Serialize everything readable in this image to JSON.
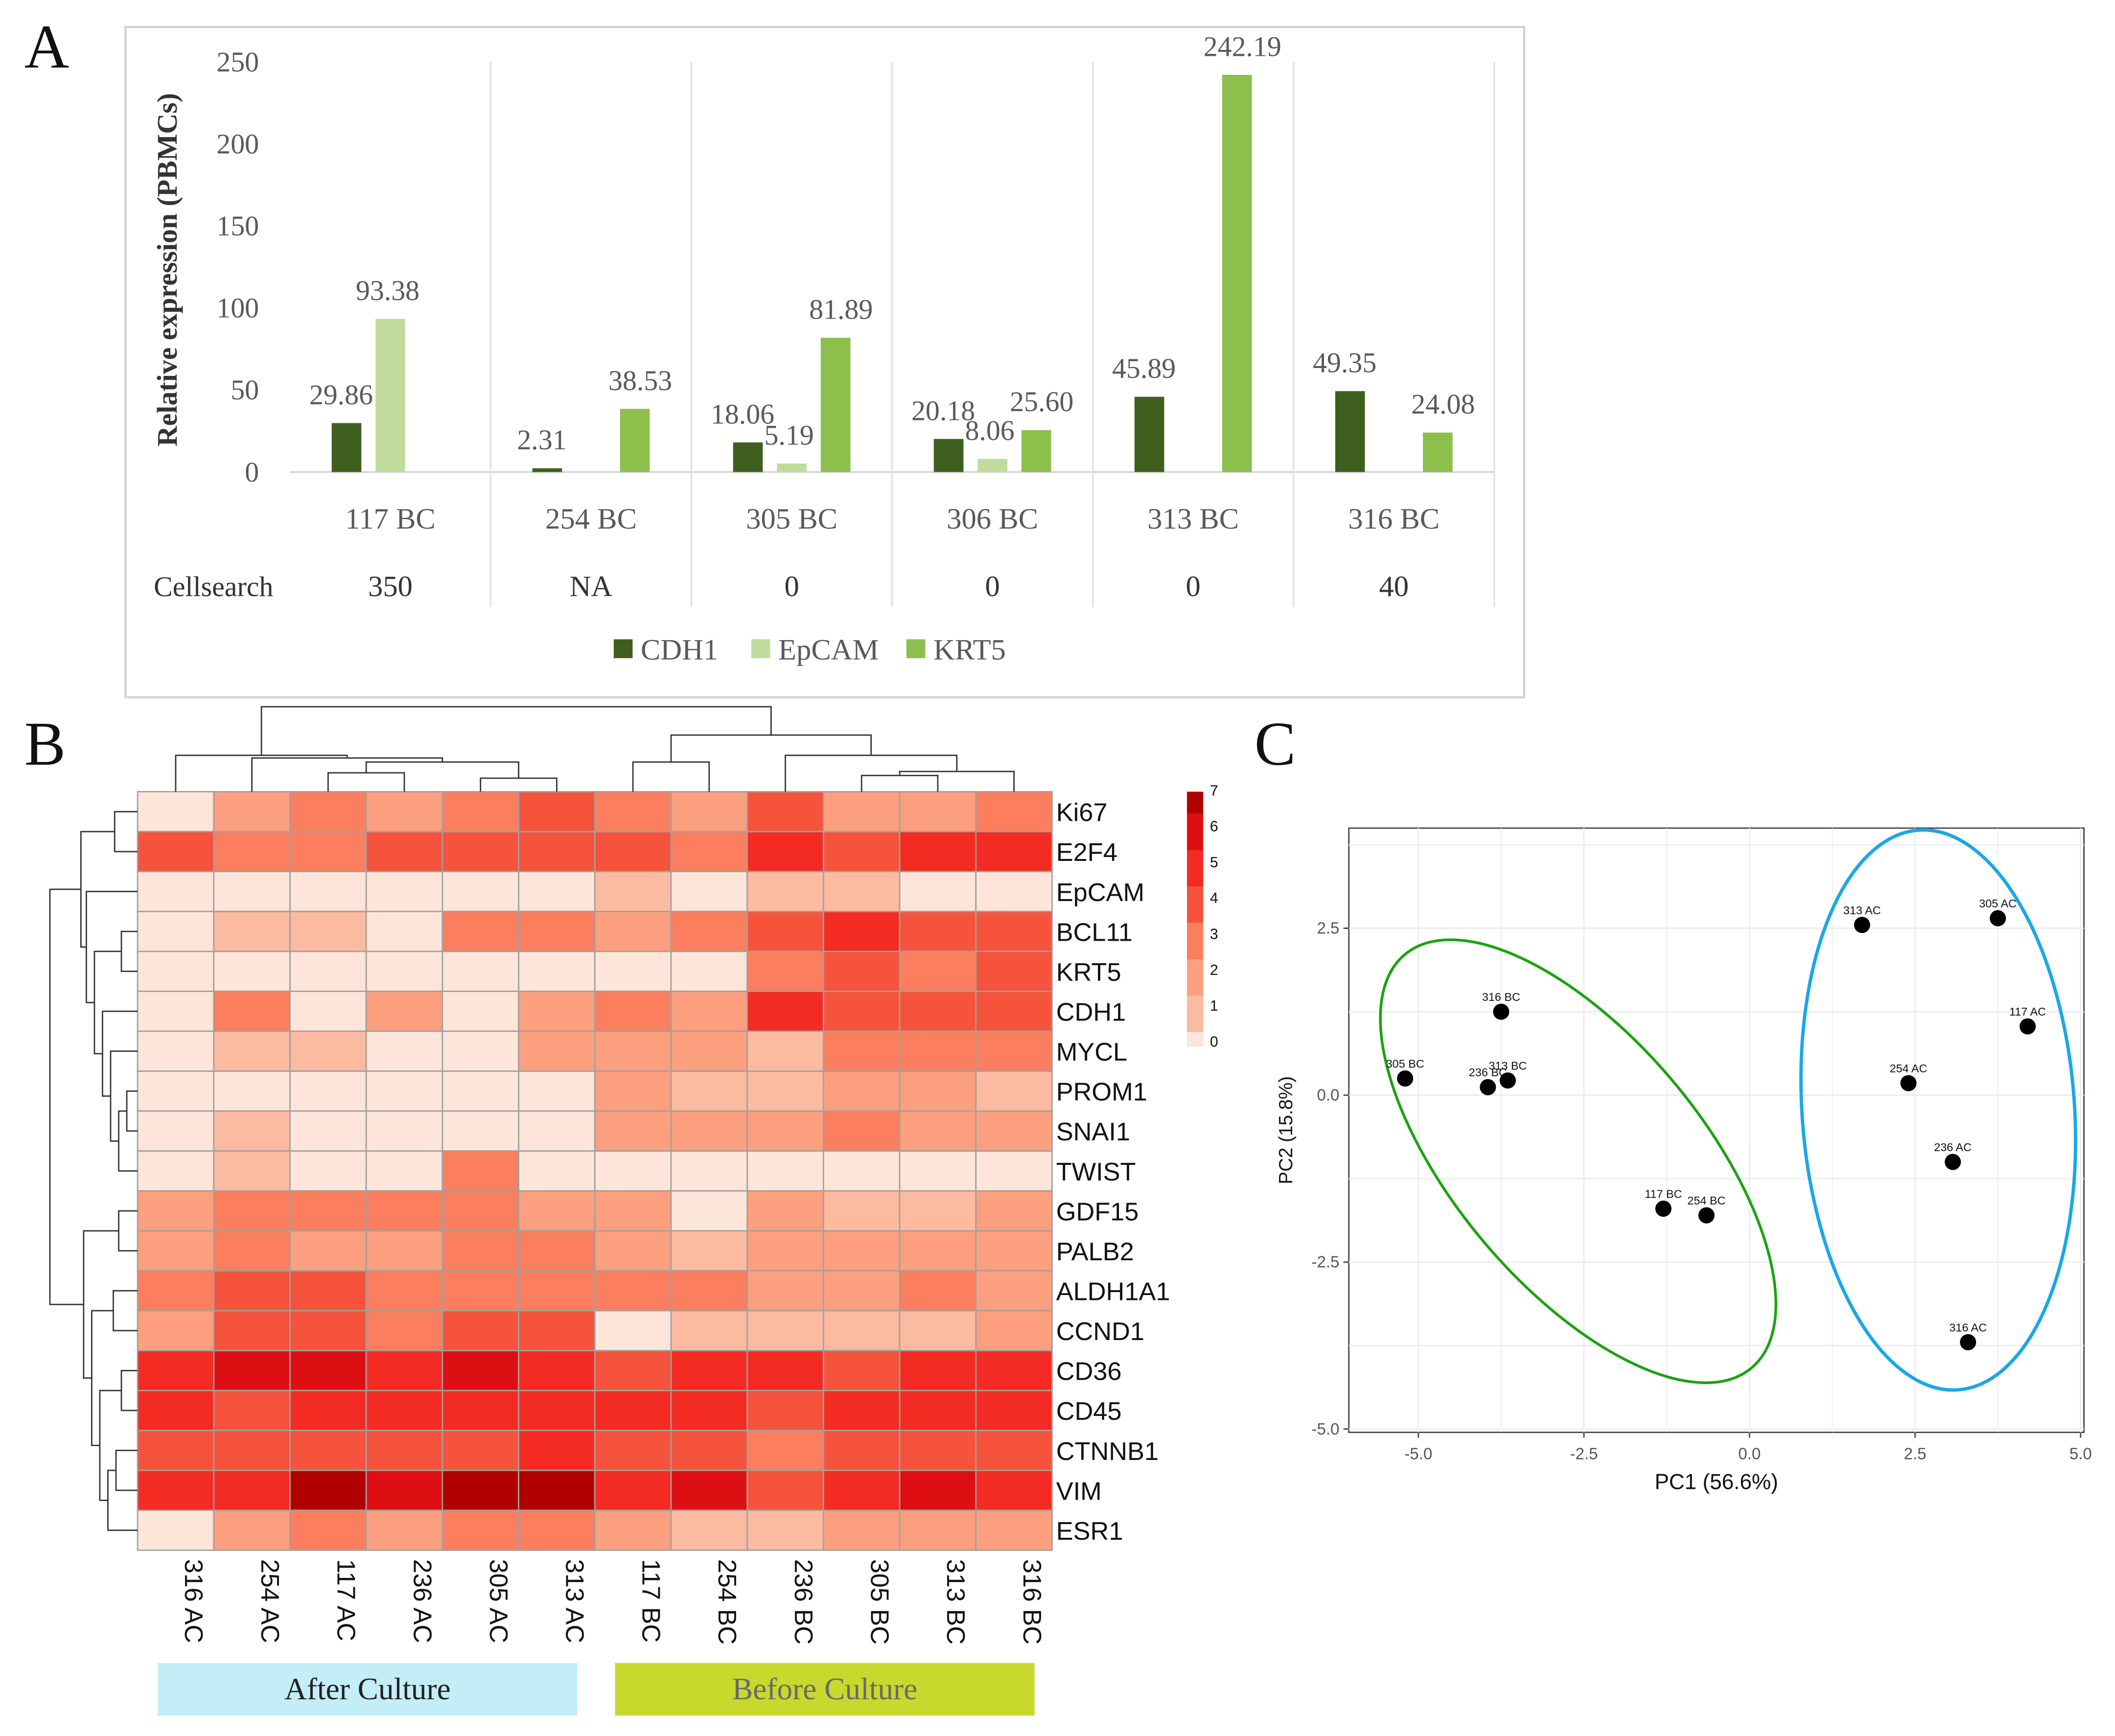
{
  "panels": {
    "a": "A",
    "b": "B",
    "c": "C"
  },
  "chart_data": [
    {
      "type": "bar",
      "title": "",
      "ylabel": "Relative expression (PBMCs)",
      "ylim": [
        0,
        250
      ],
      "yticks": [
        0,
        50,
        100,
        150,
        200,
        250
      ],
      "categories": [
        "117 BC",
        "254 BC",
        "305 BC",
        "306 BC",
        "313 BC",
        "316 BC"
      ],
      "series": [
        {
          "name": "CDH1",
          "color": "#3f5f1f",
          "values": [
            29.86,
            2.31,
            18.06,
            20.18,
            45.89,
            49.35
          ],
          "labels": [
            "29.86",
            "2.31",
            "18.06",
            "20.18",
            "45.89",
            "49.35"
          ]
        },
        {
          "name": "EpCAM",
          "color": "#c0dc9c",
          "values": [
            93.38,
            null,
            5.19,
            8.06,
            null,
            null
          ],
          "labels": [
            "93.38",
            null,
            "5.19",
            "8.06",
            null,
            null
          ]
        },
        {
          "name": "KRT5",
          "color": "#8cbf4c",
          "values": [
            null,
            38.53,
            81.89,
            25.6,
            242.19,
            24.08
          ],
          "labels": [
            null,
            "38.53",
            "81.89",
            "25.60",
            "242.19",
            "24.08"
          ]
        }
      ],
      "table_row": {
        "label": "Cellsearch",
        "values": [
          "350",
          "NA",
          "0",
          "0",
          "0",
          "40"
        ]
      },
      "legend": "bottom"
    },
    {
      "type": "heatmap",
      "columns": [
        "316 AC",
        "254 AC",
        "117 AC",
        "236 AC",
        "305 AC",
        "313 AC",
        "117 BC",
        "254 BC",
        "236 BC",
        "305 BC",
        "313 BC",
        "316 BC"
      ],
      "rows": [
        "Ki67",
        "E2F4",
        "EpCAM",
        "BCL11",
        "KRT5",
        "CDH1",
        "MYCL",
        "PROM1",
        "SNAI1",
        "TWIST",
        "GDF15",
        "PALB2",
        "ALDH1A1",
        "CCND1",
        "CD36",
        "CD45",
        "CTNNB1",
        "VIM",
        "ESR1"
      ],
      "values": [
        [
          0,
          2,
          3,
          2,
          3,
          4,
          3,
          2,
          4,
          2,
          2,
          3
        ],
        [
          4,
          3,
          3,
          4,
          4,
          4,
          4,
          3,
          5,
          4,
          5,
          5
        ],
        [
          0,
          0,
          0,
          0,
          0,
          0,
          1,
          0,
          1,
          1,
          0,
          0
        ],
        [
          0,
          1,
          1,
          0,
          3,
          3,
          2,
          3,
          4,
          5,
          4,
          4
        ],
        [
          0,
          0,
          0,
          0,
          0,
          0,
          0,
          0,
          3,
          4,
          3,
          4
        ],
        [
          0,
          3,
          0,
          2,
          0,
          2,
          3,
          2,
          5,
          4,
          4,
          4
        ],
        [
          0,
          1,
          1,
          0,
          0,
          2,
          2,
          2,
          1,
          3,
          3,
          3
        ],
        [
          0,
          0,
          0,
          0,
          0,
          0,
          2,
          1,
          1,
          2,
          2,
          1
        ],
        [
          0,
          1,
          0,
          0,
          0,
          0,
          2,
          2,
          2,
          3,
          2,
          2
        ],
        [
          0,
          1,
          0,
          0,
          3,
          0,
          0,
          0,
          0,
          0,
          0,
          0
        ],
        [
          2,
          3,
          3,
          3,
          3,
          2,
          2,
          0,
          2,
          1,
          1,
          2
        ],
        [
          2,
          3,
          2,
          2,
          3,
          3,
          2,
          1,
          2,
          2,
          2,
          2
        ],
        [
          3,
          4,
          4,
          3,
          3,
          3,
          3,
          3,
          2,
          2,
          3,
          2
        ],
        [
          2,
          4,
          4,
          3,
          4,
          4,
          0,
          1,
          1,
          1,
          1,
          2
        ],
        [
          5,
          6,
          6,
          5,
          6,
          5,
          4,
          5,
          5,
          4,
          5,
          5
        ],
        [
          5,
          4,
          5,
          5,
          5,
          5,
          5,
          5,
          4,
          5,
          5,
          5
        ],
        [
          4,
          4,
          4,
          4,
          4,
          5,
          4,
          4,
          3,
          4,
          4,
          4
        ],
        [
          5,
          5,
          7,
          6,
          7,
          7,
          5,
          6,
          4,
          5,
          6,
          5
        ],
        [
          0,
          2,
          3,
          2,
          3,
          3,
          2,
          1,
          1,
          2,
          2,
          2
        ]
      ],
      "scale": {
        "min": 0,
        "max": 7,
        "ticks": [
          "0",
          "1",
          "2",
          "3",
          "4",
          "5",
          "6",
          "7"
        ]
      },
      "groups": [
        {
          "label": "After Culture",
          "color": "#c3eef7",
          "text_color": "#222222"
        },
        {
          "label": "Before Culture",
          "color": "#c8d82c",
          "text_color": "#6a6a6a"
        }
      ]
    },
    {
      "type": "scatter",
      "xlabel": "PC1 (56.6%)",
      "ylabel": "PC2 (15.8%)",
      "xlim": [
        -6.05,
        5.05
      ],
      "ylim": [
        -5.05,
        4.0
      ],
      "xticks": [
        "-5.0",
        "-2.5",
        "0.0",
        "2.5",
        "5.0"
      ],
      "yticks": [
        "-5.0",
        "-2.5",
        "0.0",
        "2.5"
      ],
      "points": [
        {
          "label": "313 AC",
          "x": 1.7,
          "y": 2.55,
          "group": "AC"
        },
        {
          "label": "305 AC",
          "x": 3.75,
          "y": 2.65,
          "group": "AC"
        },
        {
          "label": "117 AC",
          "x": 4.2,
          "y": 1.03,
          "group": "AC"
        },
        {
          "label": "254 AC",
          "x": 2.4,
          "y": 0.18,
          "group": "AC"
        },
        {
          "label": "236 AC",
          "x": 3.07,
          "y": -1.0,
          "group": "AC"
        },
        {
          "label": "316 AC",
          "x": 3.3,
          "y": -3.7,
          "group": "AC"
        },
        {
          "label": "316 BC",
          "x": -3.75,
          "y": 1.25,
          "group": "BC"
        },
        {
          "label": "305 BC",
          "x": -5.2,
          "y": 0.25,
          "group": "BC"
        },
        {
          "label": "236 BC",
          "x": -3.95,
          "y": 0.12,
          "group": "BC"
        },
        {
          "label": "313 BC",
          "x": -3.65,
          "y": 0.22,
          "group": "BC"
        },
        {
          "label": "117 BC",
          "x": -1.3,
          "y": -1.7,
          "group": "BC"
        },
        {
          "label": "254 BC",
          "x": -0.65,
          "y": -1.8,
          "group": "BC"
        }
      ],
      "ellipse_colors": {
        "AC": "#1aa7e6",
        "BC": "#1aa30e"
      }
    }
  ]
}
